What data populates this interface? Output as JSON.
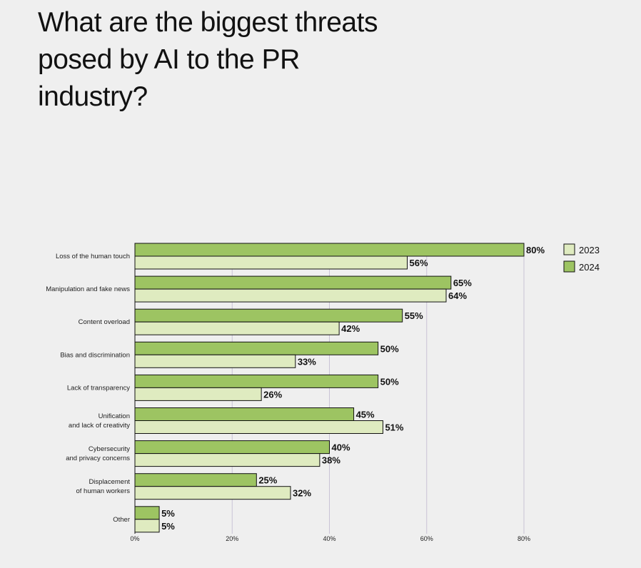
{
  "title": "What are the biggest threats posed by AI to the PR industry?",
  "chart_data": {
    "type": "bar",
    "orientation": "horizontal",
    "categories": [
      "Loss of the human touch",
      "Manipulation and fake news",
      "Content overload",
      "Bias and discrimination",
      "Lack of transparency",
      "Unification\nand lack of creativity",
      "Cybersecurity\nand privacy concerns",
      "Displacement\nof human workers",
      "Other"
    ],
    "series": [
      {
        "name": "2024",
        "color": "#9dc462",
        "values": [
          80,
          65,
          55,
          50,
          50,
          45,
          40,
          25,
          5
        ]
      },
      {
        "name": "2023",
        "color": "#dfebc0",
        "values": [
          56,
          64,
          42,
          33,
          26,
          51,
          38,
          32,
          5
        ]
      }
    ],
    "value_suffix": "%",
    "xlim": [
      0,
      80
    ],
    "xticks": [
      "0%",
      "20%",
      "40%",
      "60%",
      "80%"
    ],
    "xtick_values": [
      0,
      20,
      40,
      60,
      80
    ],
    "grid": true,
    "legend": {
      "placement": "top-right",
      "entries": [
        "2023",
        "2024"
      ]
    }
  }
}
